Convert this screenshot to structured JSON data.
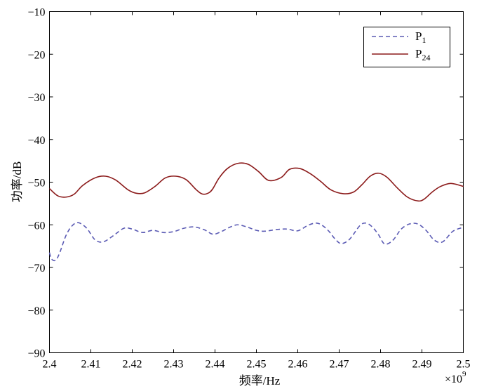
{
  "chart_data": {
    "type": "line",
    "title": "",
    "xlabel": "频率/Hz",
    "ylabel": "功率/dB",
    "x_multiplier_label": "×10",
    "x_multiplier_exponent": "9",
    "xlim": [
      2.4,
      2.5
    ],
    "ylim": [
      -90,
      -10
    ],
    "xticks": [
      2.4,
      2.41,
      2.42,
      2.43,
      2.44,
      2.45,
      2.46,
      2.47,
      2.48,
      2.49,
      2.5
    ],
    "xtick_labels": [
      "2.4",
      "2.41",
      "2.42",
      "2.43",
      "2.44",
      "2.45",
      "2.46",
      "2.47",
      "2.48",
      "2.49",
      "2.5"
    ],
    "yticks": [
      -90,
      -80,
      -70,
      -60,
      -50,
      -40,
      -30,
      -20,
      -10
    ],
    "ytick_labels": [
      "−90",
      "−80",
      "−70",
      "−60",
      "−50",
      "−40",
      "−30",
      "−20",
      "−10"
    ],
    "grid": false,
    "legend_position": "top-right",
    "series": [
      {
        "name": "P",
        "name_sub": "1",
        "color": "#5b5bb4",
        "style": "dashed",
        "x": [
          2.4,
          2.4005,
          2.4015,
          2.4025,
          2.404,
          2.4055,
          2.407,
          2.409,
          2.411,
          2.413,
          2.4155,
          2.418,
          2.42,
          2.4225,
          2.425,
          2.4275,
          2.43,
          2.4325,
          2.435,
          2.4375,
          2.4395,
          2.4415,
          2.4435,
          2.4455,
          2.448,
          2.45,
          2.452,
          2.455,
          2.4575,
          2.46,
          2.4625,
          2.4645,
          2.466,
          2.4675,
          2.469,
          2.4705,
          2.4725,
          2.475,
          2.4765,
          2.478,
          2.4795,
          2.481,
          2.483,
          2.485,
          2.487,
          2.489,
          2.491,
          2.493,
          2.495,
          2.4975,
          2.5
        ],
        "y": [
          -66.5,
          -68.0,
          -68.3,
          -66.5,
          -62.5,
          -60.2,
          -59.5,
          -60.8,
          -63.5,
          -64.0,
          -62.5,
          -60.8,
          -61.0,
          -61.8,
          -61.3,
          -61.8,
          -61.6,
          -60.8,
          -60.5,
          -61.2,
          -62.2,
          -61.6,
          -60.6,
          -60.0,
          -60.6,
          -61.3,
          -61.5,
          -61.1,
          -61.0,
          -61.4,
          -60.1,
          -59.6,
          -60.2,
          -61.5,
          -63.3,
          -64.4,
          -63.4,
          -60.2,
          -59.6,
          -60.5,
          -62.3,
          -64.5,
          -63.6,
          -61.0,
          -59.8,
          -59.8,
          -61.3,
          -63.6,
          -64.0,
          -61.5,
          -60.6
        ]
      },
      {
        "name": "P",
        "name_sub": "24",
        "color": "#8b1a1a",
        "style": "solid",
        "x": [
          2.4,
          2.402,
          2.404,
          2.406,
          2.408,
          2.411,
          2.4135,
          2.416,
          2.419,
          2.421,
          2.423,
          2.4255,
          2.428,
          2.4305,
          2.433,
          2.4355,
          2.437,
          2.4385,
          2.4395,
          2.441,
          2.443,
          2.4455,
          2.448,
          2.4505,
          2.453,
          2.456,
          2.458,
          2.4605,
          2.463,
          2.4655,
          2.468,
          2.471,
          2.4735,
          2.4755,
          2.4775,
          2.4795,
          2.4815,
          2.484,
          2.4865,
          2.489,
          2.4905,
          2.4925,
          2.4945,
          2.497,
          2.5
        ],
        "y": [
          -51.5,
          -53.2,
          -53.5,
          -52.8,
          -50.8,
          -49.0,
          -48.6,
          -49.5,
          -51.8,
          -52.6,
          -52.5,
          -51.0,
          -49.0,
          -48.6,
          -49.4,
          -51.8,
          -52.8,
          -52.5,
          -51.5,
          -49.0,
          -46.8,
          -45.6,
          -45.8,
          -47.5,
          -49.6,
          -48.9,
          -47.0,
          -46.8,
          -48.0,
          -49.8,
          -51.8,
          -52.7,
          -52.3,
          -50.6,
          -48.6,
          -47.9,
          -48.8,
          -51.3,
          -53.5,
          -54.4,
          -54.0,
          -52.3,
          -51.0,
          -50.3,
          -51.0
        ]
      }
    ]
  }
}
